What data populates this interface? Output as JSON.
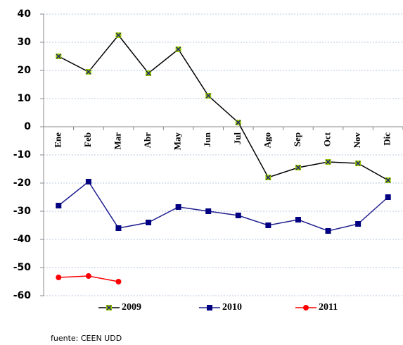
{
  "chart_data": {
    "type": "line",
    "categories": [
      "Ene",
      "Feb",
      "Mar",
      "Abr",
      "May",
      "Jun",
      "Jul",
      "Ago",
      "Sep",
      "Oct",
      "Nov",
      "Dic"
    ],
    "series": [
      {
        "name": "2009",
        "color": "#000000",
        "marker": "x-square",
        "marker_color": "#99cc00",
        "values": [
          25,
          19.5,
          32.5,
          19,
          27.5,
          11,
          1.5,
          -18,
          -14.5,
          -12.5,
          -13,
          -19
        ]
      },
      {
        "name": "2010",
        "color": "#1f1f8f",
        "marker": "square",
        "marker_color": "#000080",
        "values": [
          -28,
          -19.5,
          -36,
          -34,
          -28.5,
          -30,
          -31.5,
          -35,
          -33,
          -37,
          -34.5,
          -25
        ]
      },
      {
        "name": "2011",
        "color": "#ff0000",
        "marker": "circle",
        "marker_color": "#ff0000",
        "values": [
          -53.5,
          -53,
          -55,
          null,
          null,
          null,
          null,
          null,
          null,
          null,
          null,
          null
        ]
      }
    ],
    "ylim": [
      -60,
      40
    ],
    "yticks": [
      -60,
      -50,
      -40,
      -30,
      -20,
      -10,
      0,
      10,
      20,
      30,
      40
    ],
    "grid": true,
    "legend": "bottom",
    "source": "fuente: CEEN UDD"
  }
}
